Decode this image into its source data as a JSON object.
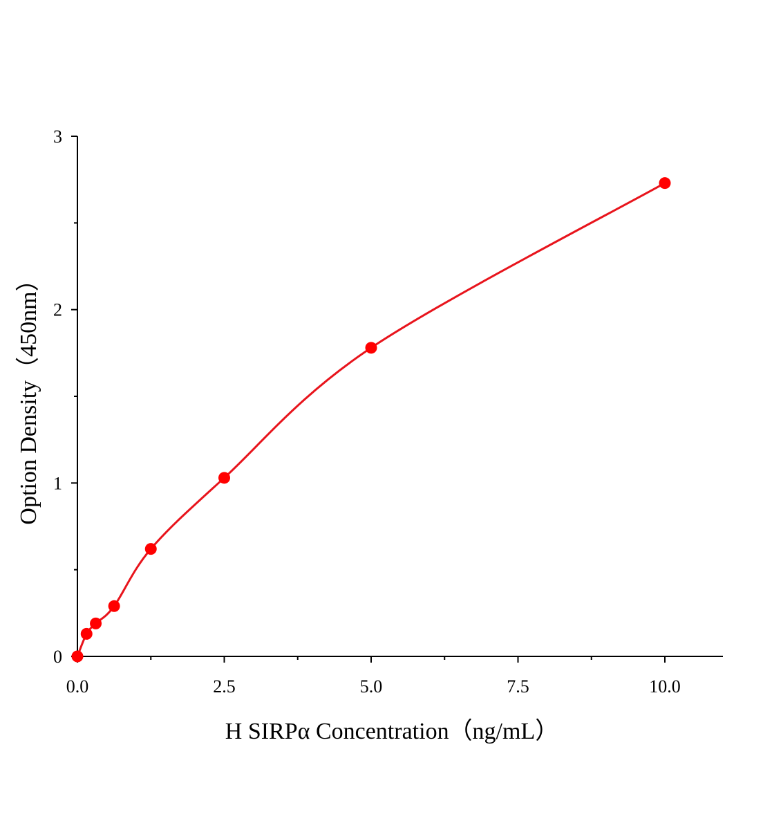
{
  "chart_data": {
    "type": "scatter",
    "title": "",
    "xlabel": "H SIRPα Concentration（ng/mL）",
    "ylabel": "Option Density（450nm）",
    "xlim": [
      0,
      11
    ],
    "ylim": [
      0,
      3
    ],
    "x_ticks": [
      0,
      2.5,
      5,
      7.5,
      10
    ],
    "x_tick_labels": [
      "0.0",
      "2.5",
      "5.0",
      "7.5",
      "10.0"
    ],
    "x_minor_ticks": [
      1.25,
      3.75,
      6.25,
      8.75
    ],
    "y_ticks": [
      0,
      1,
      2,
      3
    ],
    "y_tick_labels": [
      "0",
      "1",
      "2",
      "3"
    ],
    "y_minor_ticks": [
      0.5,
      1.5,
      2.5
    ],
    "grid": false,
    "series": [
      {
        "x": [
          0,
          0.156,
          0.3125,
          0.625,
          1.25,
          2.5,
          5,
          10
        ],
        "y": [
          0,
          0.13,
          0.19,
          0.29,
          0.62,
          1.03,
          1.78,
          2.73
        ],
        "marker": "circle",
        "fit_curve": true,
        "color": "#ff0000",
        "line_color": "#e8141c"
      }
    ]
  }
}
